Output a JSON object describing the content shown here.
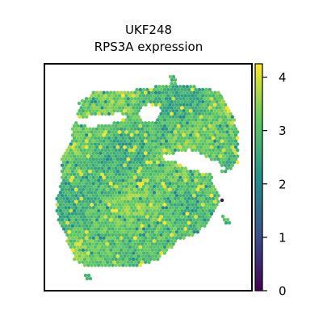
{
  "chart_data": {
    "type": "scatter",
    "title_lines": [
      "UKF248",
      "RPS3A expression"
    ],
    "xlabel": "",
    "ylabel": "",
    "axes_ticks_visible": false,
    "grid": false,
    "legend": "none",
    "marker": "hexagon",
    "colormap": "viridis",
    "colorbar": {
      "position": "right",
      "range": [
        0,
        4.25
      ],
      "ticks": [
        0,
        1,
        2,
        3,
        4
      ],
      "tick_labels": [
        "0",
        "1",
        "2",
        "3",
        "4"
      ],
      "stops": [
        "#440154",
        "#3b528b",
        "#21918c",
        "#5ec962",
        "#fde725"
      ]
    },
    "typical_value": 3,
    "outlier_spot": {
      "value": 0.2
    }
  }
}
